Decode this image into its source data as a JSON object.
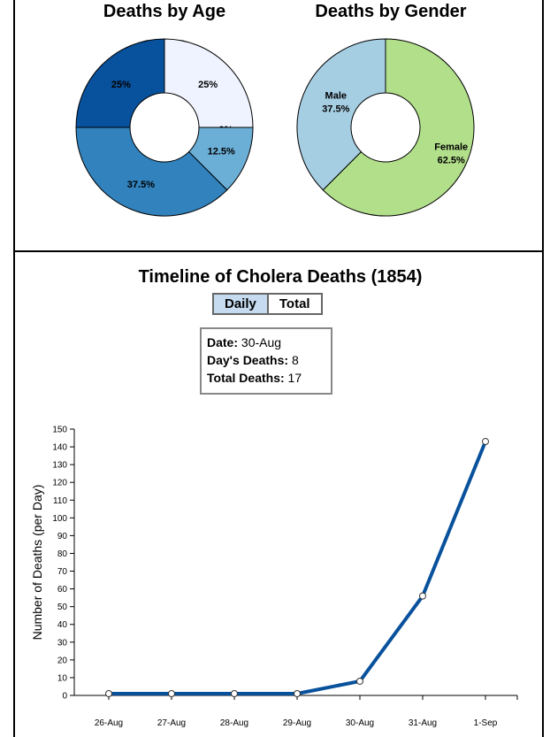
{
  "age_chart": {
    "title": "Deaths by Age"
  },
  "gender_chart": {
    "title": "Deaths by Gender"
  },
  "timeline": {
    "title": "Timeline of Cholera Deaths (1854)",
    "toggle": {
      "daily": "Daily",
      "total": "Total",
      "active": "daily"
    }
  },
  "info": {
    "date_label": "Date:",
    "date_value": "30-Aug",
    "days_label": "Day's Deaths:",
    "days_value": "8",
    "total_label": "Total Deaths:",
    "total_value": "17"
  },
  "colors": {
    "line": "#08519c",
    "divider": "#000000"
  },
  "chart_data": [
    {
      "type": "pie",
      "title": "Deaths by Age",
      "slices": [
        {
          "label": "25%",
          "value": 25,
          "color": "#eff3ff"
        },
        {
          "label": "0%",
          "value": 0,
          "color": "#c6dbef"
        },
        {
          "label": "12.5%",
          "value": 12.5,
          "color": "#6baed6"
        },
        {
          "label": "37.5%",
          "value": 37.5,
          "color": "#3182bd"
        },
        {
          "label": "25%",
          "value": 25,
          "color": "#08519c"
        }
      ]
    },
    {
      "type": "pie",
      "title": "Deaths by Gender",
      "slices": [
        {
          "label": "Female",
          "pct": "62.5%",
          "value": 62.5,
          "color": "#b2df8a"
        },
        {
          "label": "Male",
          "pct": "37.5%",
          "value": 37.5,
          "color": "#a6cee3"
        }
      ]
    },
    {
      "type": "line",
      "title": "Timeline of Cholera Deaths (1854)",
      "ylabel": "Number of Deaths (per Day)",
      "ylim": [
        0,
        150
      ],
      "yticks": [
        0,
        10,
        20,
        30,
        40,
        50,
        60,
        70,
        80,
        90,
        100,
        110,
        120,
        130,
        140,
        150
      ],
      "categories": [
        "26-Aug",
        "27-Aug",
        "28-Aug",
        "29-Aug",
        "30-Aug",
        "31-Aug",
        "1-Sep"
      ],
      "series": [
        {
          "values": [
            1,
            1,
            1,
            1,
            8,
            56,
            143
          ]
        }
      ]
    }
  ]
}
